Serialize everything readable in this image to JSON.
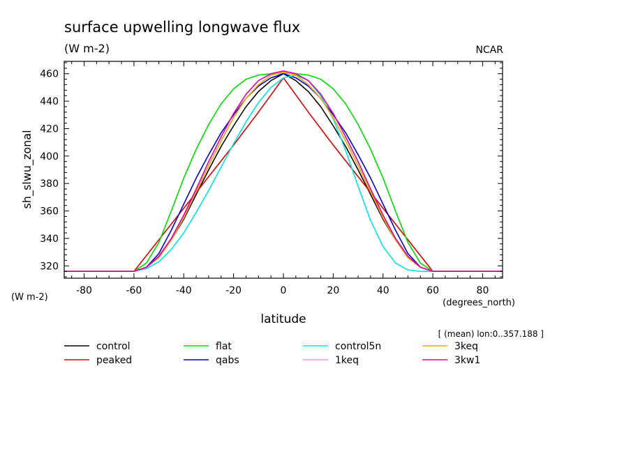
{
  "chart_data": {
    "type": "line",
    "title": "surface upwelling longwave flux",
    "subtitle": "(W m-2)",
    "credit": "NCAR",
    "xlabel": "latitude",
    "ylabel": "sh_slwu_zonal",
    "y_units": "(W m-2)",
    "x_units": "(degrees_north)",
    "annotation": "[ (mean) lon:0..357.188 ]",
    "xlim": [
      -88,
      88
    ],
    "ylim": [
      311,
      469
    ],
    "xticks": [
      -80,
      -60,
      -40,
      -20,
      0,
      20,
      40,
      60,
      80
    ],
    "yticks": [
      320,
      340,
      360,
      380,
      400,
      420,
      440,
      460
    ],
    "legend_placement": "bottom",
    "grid": false,
    "series": [
      {
        "name": "control",
        "color": "#000000",
        "x": [
          -88,
          -60,
          -55,
          -50,
          -45,
          -40,
          -35,
          -30,
          -25,
          -20,
          -15,
          -10,
          -5,
          0,
          5,
          10,
          15,
          20,
          25,
          30,
          35,
          40,
          45,
          50,
          55,
          60,
          88
        ],
        "y": [
          316,
          316,
          319,
          326,
          339,
          354,
          372,
          390,
          407,
          422,
          436,
          447,
          455,
          460,
          455,
          447,
          436,
          422,
          407,
          390,
          372,
          354,
          339,
          326,
          319,
          316,
          316
        ]
      },
      {
        "name": "peaked",
        "color": "#dd0000",
        "x": [
          -88,
          -60,
          -50,
          -40,
          -30,
          -20,
          -10,
          0,
          10,
          20,
          30,
          40,
          50,
          60,
          88
        ],
        "y": [
          316,
          316,
          339,
          362,
          385,
          408,
          432,
          457,
          432,
          408,
          385,
          362,
          339,
          316,
          316
        ]
      },
      {
        "name": "flat",
        "color": "#00dd00",
        "x": [
          -88,
          -60,
          -55,
          -50,
          -45,
          -40,
          -35,
          -30,
          -25,
          -20,
          -15,
          -10,
          -5,
          0,
          5,
          10,
          15,
          20,
          25,
          30,
          35,
          40,
          45,
          50,
          55,
          60,
          88
        ],
        "y": [
          316,
          316,
          322,
          337,
          360,
          384,
          405,
          423,
          438,
          449,
          456,
          459,
          460,
          460,
          460,
          459,
          456,
          449,
          438,
          423,
          405,
          384,
          360,
          337,
          322,
          316,
          316
        ]
      },
      {
        "name": "qabs",
        "color": "#0000cc",
        "x": [
          -88,
          -60,
          -55,
          -50,
          -45,
          -40,
          -35,
          -30,
          -25,
          -20,
          -15,
          -10,
          -5,
          0,
          5,
          10,
          15,
          20,
          25,
          30,
          35,
          40,
          45,
          50,
          55,
          60,
          88
        ],
        "y": [
          316,
          316,
          319,
          329,
          346,
          365,
          384,
          401,
          417,
          430,
          442,
          451,
          457,
          460,
          457,
          451,
          442,
          430,
          417,
          401,
          384,
          365,
          346,
          329,
          319,
          316,
          316
        ]
      },
      {
        "name": "control5n",
        "color": "#00e5e5",
        "x": [
          -88,
          -60,
          -55,
          -50,
          -45,
          -40,
          -35,
          -30,
          -25,
          -20,
          -15,
          -10,
          -5,
          0,
          5,
          10,
          15,
          20,
          25,
          30,
          35,
          40,
          45,
          50,
          55,
          60,
          88
        ],
        "y": [
          316,
          316,
          318,
          323,
          332,
          344,
          359,
          375,
          392,
          409,
          425,
          439,
          450,
          457,
          459,
          455,
          444,
          427,
          404,
          378,
          353,
          334,
          322,
          317,
          316,
          316,
          316
        ]
      },
      {
        "name": "1keq",
        "color": "#ee99dd",
        "x": [
          -88,
          -60,
          -55,
          -50,
          -45,
          -40,
          -35,
          -30,
          -25,
          -20,
          -15,
          -10,
          -5,
          0,
          5,
          10,
          15,
          20,
          25,
          30,
          35,
          40,
          45,
          50,
          55,
          60,
          88
        ],
        "y": [
          316,
          316,
          319,
          326,
          339,
          355,
          374,
          393,
          411,
          428,
          442,
          452,
          459,
          461,
          459,
          452,
          442,
          428,
          411,
          393,
          374,
          355,
          339,
          326,
          319,
          316,
          316
        ]
      },
      {
        "name": "3keq",
        "color": "#eeaa00",
        "x": [
          -88,
          -60,
          -55,
          -50,
          -45,
          -40,
          -35,
          -30,
          -25,
          -20,
          -15,
          -10,
          -5,
          0,
          5,
          10,
          15,
          20,
          25,
          30,
          35,
          40,
          45,
          50,
          55,
          60,
          88
        ],
        "y": [
          316,
          316,
          319,
          326,
          339,
          355,
          374,
          393,
          411,
          428,
          442,
          452,
          459,
          461,
          459,
          452,
          442,
          428,
          411,
          393,
          374,
          355,
          339,
          326,
          319,
          316,
          316
        ]
      },
      {
        "name": "3kw1",
        "color": "#dd00aa",
        "x": [
          -88,
          -60,
          -55,
          -50,
          -45,
          -40,
          -35,
          -30,
          -25,
          -20,
          -15,
          -10,
          -5,
          0,
          5,
          10,
          15,
          20,
          25,
          30,
          35,
          40,
          45,
          50,
          55,
          60,
          88
        ],
        "y": [
          316,
          316,
          319,
          327,
          340,
          357,
          376,
          396,
          414,
          431,
          445,
          455,
          460,
          462,
          460,
          455,
          445,
          431,
          414,
          396,
          376,
          357,
          340,
          327,
          319,
          316,
          316
        ]
      }
    ],
    "legend_order": [
      "control",
      "flat",
      "control5n",
      "3keq",
      "peaked",
      "qabs",
      "1keq",
      "3kw1"
    ]
  }
}
